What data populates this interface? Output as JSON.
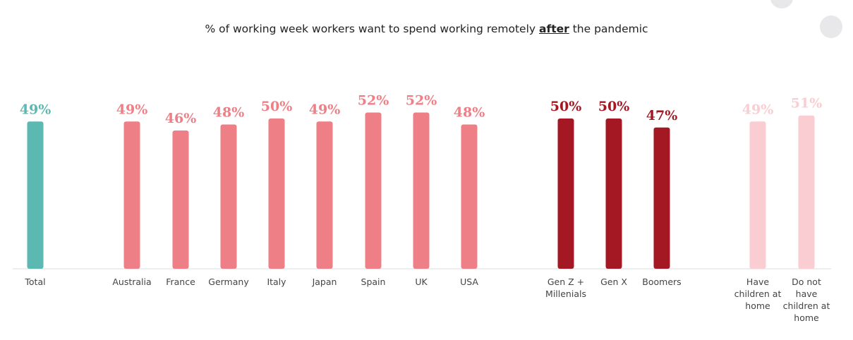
{
  "title": {
    "prefix": "% of working week workers want to spend working remotely ",
    "emphasis": "after",
    "suffix": " the pandemic"
  },
  "colors": {
    "total": "#5bb9b1",
    "country": "#ee7f86",
    "generation": "#a31823",
    "children": "#f9cdd1",
    "axis": "#dddddd"
  },
  "chart_data": {
    "type": "bar",
    "title": "% of working week workers want to spend working remotely after the pandemic",
    "xlabel": "",
    "ylabel": "",
    "ylim": [
      0,
      60
    ],
    "grid": false,
    "unit": "%",
    "groups": [
      {
        "name": "total",
        "color": "#5bb9b1",
        "categories": [
          [
            "Total"
          ]
        ],
        "values": [
          49
        ]
      },
      {
        "name": "country",
        "color": "#ee7f86",
        "categories": [
          [
            "Australia"
          ],
          [
            "France"
          ],
          [
            "Germany"
          ],
          [
            "Italy"
          ],
          [
            "Japan"
          ],
          [
            "Spain"
          ],
          [
            "UK"
          ],
          [
            "USA"
          ]
        ],
        "values": [
          49,
          46,
          48,
          50,
          49,
          52,
          52,
          48
        ]
      },
      {
        "name": "generation",
        "color": "#a31823",
        "categories": [
          [
            "Gen Z +",
            "Millenials"
          ],
          [
            "Gen X"
          ],
          [
            "Boomers"
          ]
        ],
        "values": [
          50,
          50,
          47
        ]
      },
      {
        "name": "children",
        "color": "#f9cdd1",
        "categories": [
          [
            "Have",
            "children at",
            "home"
          ],
          [
            "Do not",
            "have",
            "children at",
            "home"
          ]
        ],
        "values": [
          49,
          51
        ]
      }
    ]
  }
}
